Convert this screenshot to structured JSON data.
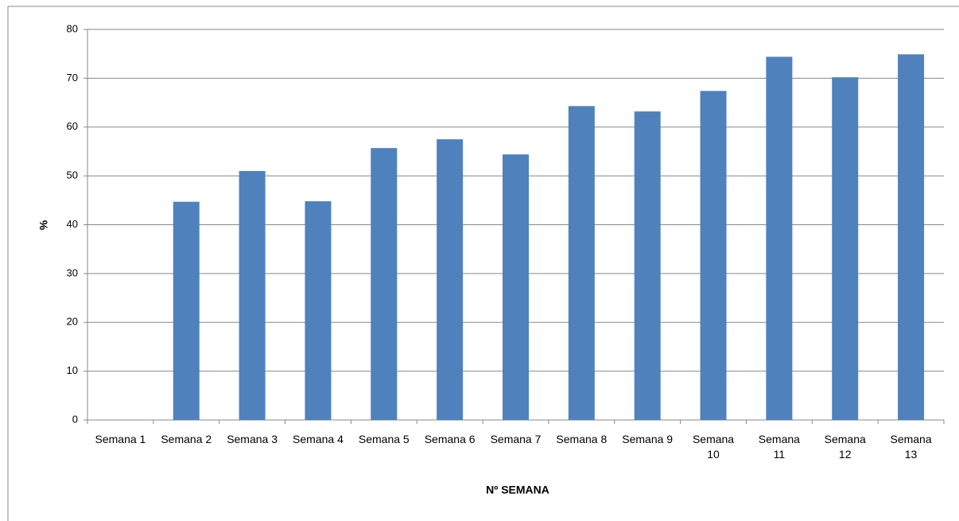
{
  "chart_data": {
    "type": "bar",
    "x_label": "Nº SEMANA",
    "y_label": "%",
    "categories": [
      "Semana 1",
      "Semana 2",
      "Semana 3",
      "Semana 4",
      "Semana 5",
      "Semana 6",
      "Semana 7",
      "Semana 8",
      "Semana 9",
      "Semana 10",
      "Semana 11",
      "Semana 12",
      "Semana 13"
    ],
    "values": [
      0,
      44.7,
      51.0,
      44.8,
      55.7,
      57.5,
      54.4,
      64.3,
      63.2,
      67.4,
      74.4,
      70.2,
      74.9
    ],
    "color": "#4f81bd",
    "ylim": [
      0,
      80
    ],
    "yticks": [
      0,
      10,
      20,
      30,
      40,
      50,
      60,
      70,
      80
    ],
    "grid": true
  }
}
